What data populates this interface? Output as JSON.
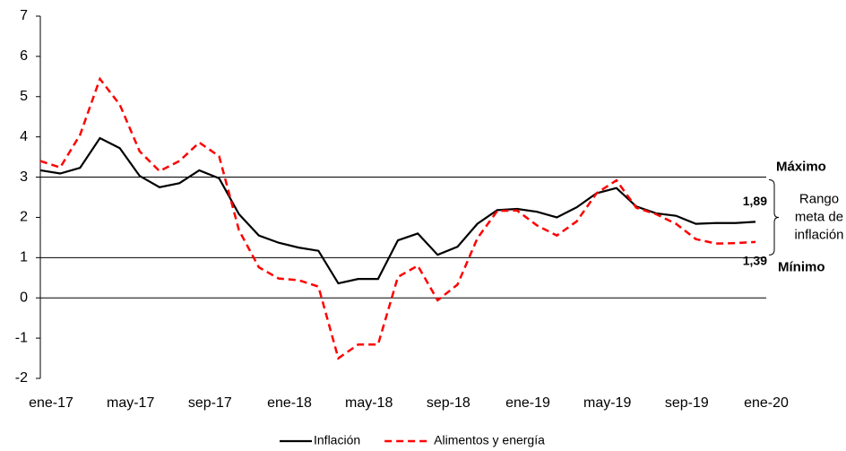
{
  "chart_data": {
    "type": "line",
    "categories": [
      "ene-17",
      null,
      null,
      null,
      "may-17",
      null,
      null,
      null,
      "sep-17",
      null,
      null,
      null,
      "ene-18",
      null,
      null,
      null,
      "may-18",
      null,
      null,
      null,
      "sep-18",
      null,
      null,
      null,
      "ene-19",
      null,
      null,
      null,
      "may-19",
      null,
      null,
      null,
      "sep-19",
      null,
      null,
      null,
      "ene-20"
    ],
    "series": [
      {
        "name": "Inflación",
        "color": "#000000",
        "dash": false,
        "values": [
          3.17,
          3.09,
          3.23,
          3.97,
          3.72,
          3.03,
          2.75,
          2.85,
          3.17,
          2.97,
          2.08,
          1.55,
          1.37,
          1.25,
          1.17,
          0.36,
          0.47,
          0.47,
          1.43,
          1.6,
          1.07,
          1.27,
          1.84,
          2.18,
          2.21,
          2.14,
          2.0,
          2.25,
          2.6,
          2.73,
          2.27,
          2.1,
          2.04,
          1.84,
          1.86,
          1.86,
          1.89
        ],
        "value_labels": [
          null,
          null,
          null,
          null,
          null,
          null,
          null,
          null,
          null,
          null,
          null,
          null,
          null,
          null,
          null,
          null,
          null,
          null,
          null,
          null,
          null,
          null,
          null,
          null,
          null,
          null,
          null,
          null,
          null,
          null,
          null,
          null,
          null,
          null,
          null,
          null,
          "1,89"
        ]
      },
      {
        "name": "Alimentos y energía",
        "color": "#ff0000",
        "dash": true,
        "values": [
          3.4,
          3.24,
          4.05,
          5.44,
          4.8,
          3.64,
          3.15,
          3.4,
          3.86,
          3.52,
          1.68,
          0.76,
          0.48,
          0.44,
          0.28,
          -1.5,
          -1.16,
          -1.16,
          0.52,
          0.8,
          -0.06,
          0.33,
          1.48,
          2.16,
          2.17,
          1.8,
          1.55,
          1.9,
          2.6,
          2.92,
          2.24,
          2.08,
          1.84,
          1.46,
          1.35,
          1.36,
          1.39
        ],
        "value_labels": [
          null,
          null,
          null,
          null,
          null,
          null,
          null,
          null,
          null,
          null,
          null,
          null,
          null,
          null,
          null,
          null,
          null,
          null,
          null,
          null,
          null,
          null,
          null,
          null,
          null,
          null,
          null,
          null,
          null,
          null,
          null,
          null,
          null,
          null,
          null,
          null,
          "1,39"
        ]
      }
    ],
    "ylim": [
      -2,
      7
    ],
    "yticks": [
      -2,
      -1,
      0,
      1,
      2,
      3,
      4,
      5,
      6,
      7
    ],
    "reference_lines": [
      {
        "value": 3,
        "label": "Máximo"
      },
      {
        "value": 1,
        "label": "Mínimo"
      }
    ],
    "annotation": [
      "Rango",
      "meta de",
      "inflación"
    ],
    "legend": "bottom"
  }
}
